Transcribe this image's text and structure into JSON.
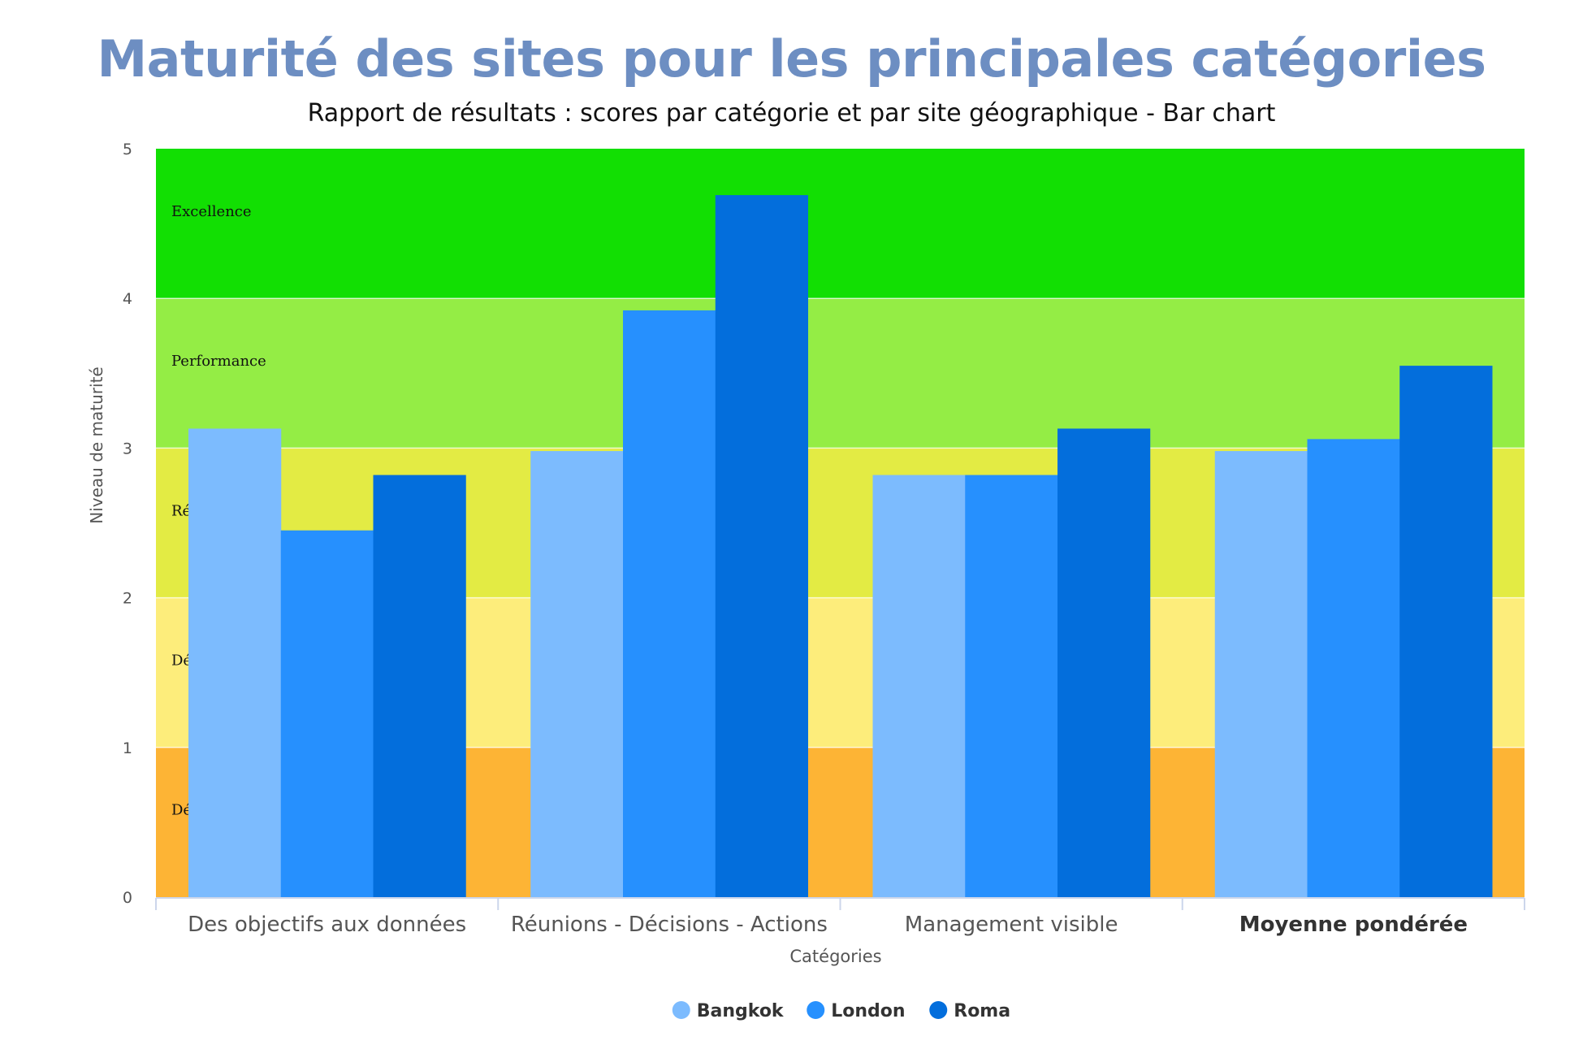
{
  "chart_data": {
    "type": "bar",
    "title": "Maturité des sites pour les principales catégories",
    "subtitle": "Rapport de résultats : scores par catégorie et par site géographique - Bar chart",
    "xlabel": "Catégories",
    "ylabel": "Niveau de maturité",
    "ylim": [
      0,
      5
    ],
    "yticks": [
      "0",
      "1",
      "2",
      "3",
      "4",
      "5"
    ],
    "categories": [
      "Des objectifs aux données",
      "Réunions - Décisions - Actions",
      "Management visible",
      "Moyenne pondérée"
    ],
    "series": [
      {
        "name": "Bangkok",
        "color": "#7cbbfe",
        "values": [
          3.13,
          2.98,
          2.82,
          2.98
        ]
      },
      {
        "name": "London",
        "color": "#2690fe",
        "values": [
          2.45,
          3.92,
          2.82,
          3.06
        ]
      },
      {
        "name": "Roma",
        "color": "#036edc",
        "values": [
          2.82,
          4.69,
          3.13,
          3.55
        ]
      }
    ],
    "bands": [
      {
        "from": 0,
        "to": 1,
        "color": "#fdb435",
        "label": "Dé"
      },
      {
        "from": 1,
        "to": 2,
        "color": "#fded7b",
        "label": "Dé"
      },
      {
        "from": 2,
        "to": 3,
        "color": "#e3eb44",
        "label": "Ré"
      },
      {
        "from": 3,
        "to": 4,
        "color": "#94ed45",
        "label": "Performance"
      },
      {
        "from": 4,
        "to": 5,
        "color": "#12df03",
        "label": "Excellence"
      }
    ],
    "grid": false,
    "legend_position": "bottom"
  }
}
